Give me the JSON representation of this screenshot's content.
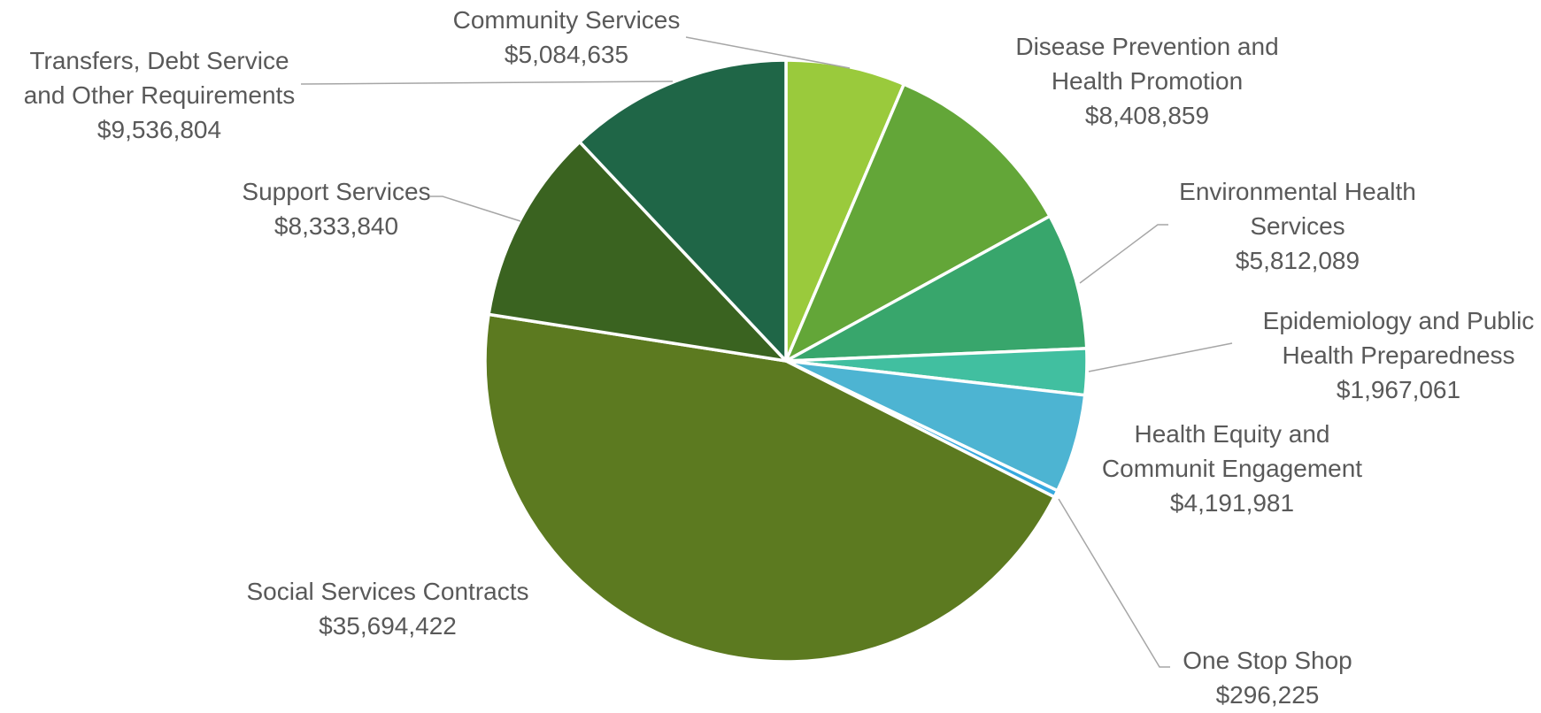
{
  "chart_data": {
    "type": "pie",
    "title": "",
    "start": "12 o'clock",
    "direction": "clockwise",
    "slices": [
      {
        "label": "Community Services",
        "value": 5084635,
        "value_label": "$5,084,635",
        "color": "#9ACA3C"
      },
      {
        "label": "Disease Prevention and Health Promotion",
        "value": 8408859,
        "value_label": "$8,408,859",
        "color": "#63A638"
      },
      {
        "label": "Environmental Health Services",
        "value": 5812089,
        "value_label": "$5,812,089",
        "color": "#38A66C"
      },
      {
        "label": "Epidemiology and Public Health Preparedness",
        "value": 1967061,
        "value_label": "$1,967,061",
        "color": "#41BFA0"
      },
      {
        "label": "Health Equity and Communit Engagement",
        "value": 4191981,
        "value_label": "$4,191,981",
        "color": "#4DB4D2"
      },
      {
        "label": "One Stop Shop",
        "value": 296225,
        "value_label": "$296,225",
        "color": "#36A9DF"
      },
      {
        "label": "Social Services Contracts",
        "value": 35694422,
        "value_label": "$35,694,422",
        "color": "#5C7A20"
      },
      {
        "label": "Support Services",
        "value": 8333840,
        "value_label": "$8,333,840",
        "color": "#3A6320"
      },
      {
        "label": "Transfers, Debt Service and Other Requirements",
        "value": 9536804,
        "value_label": "$9,536,804",
        "color": "#1F6647"
      }
    ]
  }
}
